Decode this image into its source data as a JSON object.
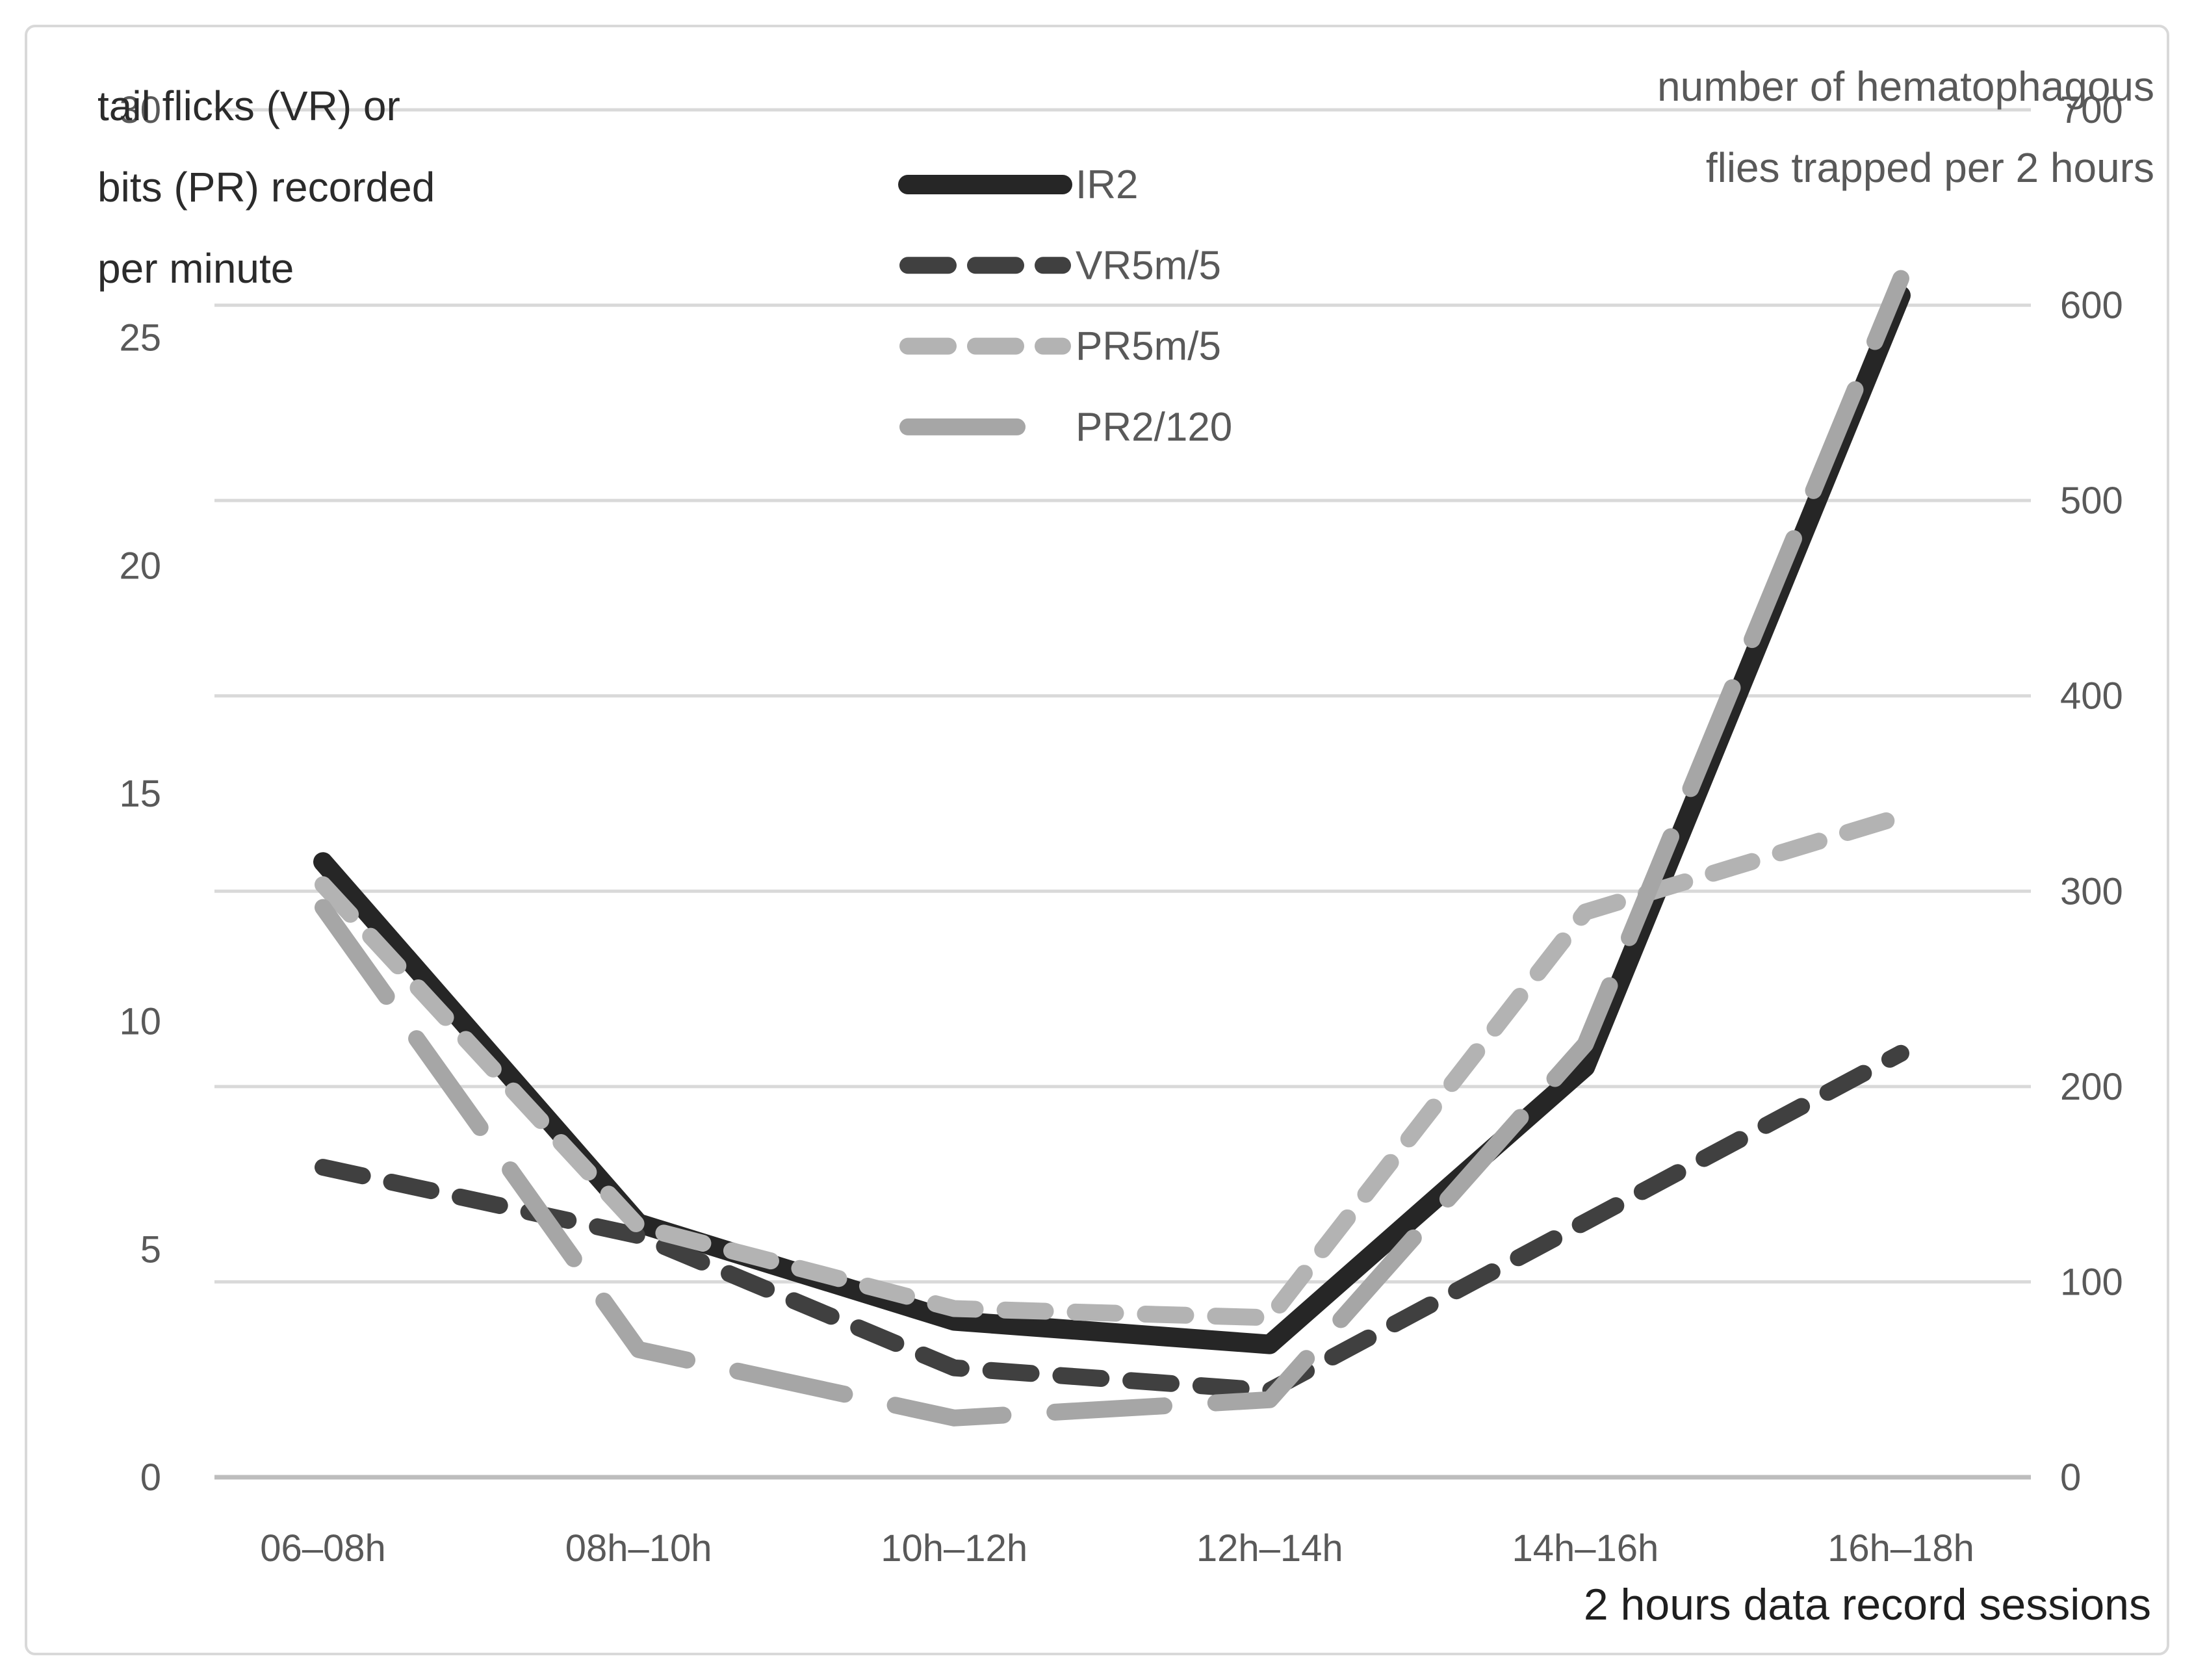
{
  "colors": {
    "axis_text": "#595959",
    "left_note_text": "#2b2b2b",
    "title_text": "#1f1f1f",
    "gridline": "#d9d9d9",
    "baseline": "#bdbdbd",
    "border": "#d9d9d9",
    "series_ir2": "#262626",
    "series_vr5m5": "#404040",
    "series_pr5m5": "#b3b3b3",
    "series_pr2120": "#a6a6a6"
  },
  "chart_data": {
    "type": "line",
    "title": "",
    "categories": [
      "06–08h",
      "08h–10h",
      "10h–12h",
      "12h–14h",
      "14h–16h",
      "16h–18h"
    ],
    "series": [
      {
        "name": "IR2",
        "axis": "right",
        "style": "solid",
        "color": "#262626",
        "values": [
          315,
          130,
          80,
          68,
          210,
          605
        ]
      },
      {
        "name": "VR5m/5",
        "axis": "left",
        "style": "dash",
        "color": "#404040",
        "values": [
          6.8,
          5.3,
          2.4,
          1.9,
          5.6,
          9.3
        ]
      },
      {
        "name": "PR5m/5",
        "axis": "left",
        "style": "dash",
        "color": "#b3b3b3",
        "values": [
          13.0,
          5.5,
          3.7,
          3.5,
          12.4,
          14.5
        ]
      },
      {
        "name": "PR2/120",
        "axis": "left",
        "style": "long-dash",
        "color": "#a6a6a6",
        "values": [
          12.5,
          2.8,
          1.3,
          1.7,
          9.5,
          26.3
        ]
      }
    ],
    "left_axis": {
      "label": "tail flicks (VR) or bits (PR) recorded per minute",
      "label_lines": [
        "tail flicks (VR) or",
        "bits (PR) recorded",
        "per minute"
      ],
      "min": 0,
      "max": 30,
      "step": 5,
      "ticks": [
        30,
        25,
        20,
        15,
        10,
        5,
        0
      ]
    },
    "right_axis": {
      "label": "number of hematophagous flies trapped per 2 hours",
      "label_lines": [
        "number of hematophagous",
        "flies trapped per 2 hours"
      ],
      "min": 0,
      "max": 700,
      "step": 100,
      "ticks": [
        700,
        600,
        500,
        400,
        300,
        200,
        100,
        0
      ]
    },
    "x_axis": {
      "label": "2 hours data record sessions"
    },
    "legend": {
      "position": "top-center",
      "entries": [
        "IR2",
        "VR5m/5",
        "PR5m/5",
        "PR2/120"
      ]
    },
    "grid": "horizontal",
    "ylim_left": [
      0,
      30
    ],
    "ylim_right": [
      0,
      700
    ]
  }
}
